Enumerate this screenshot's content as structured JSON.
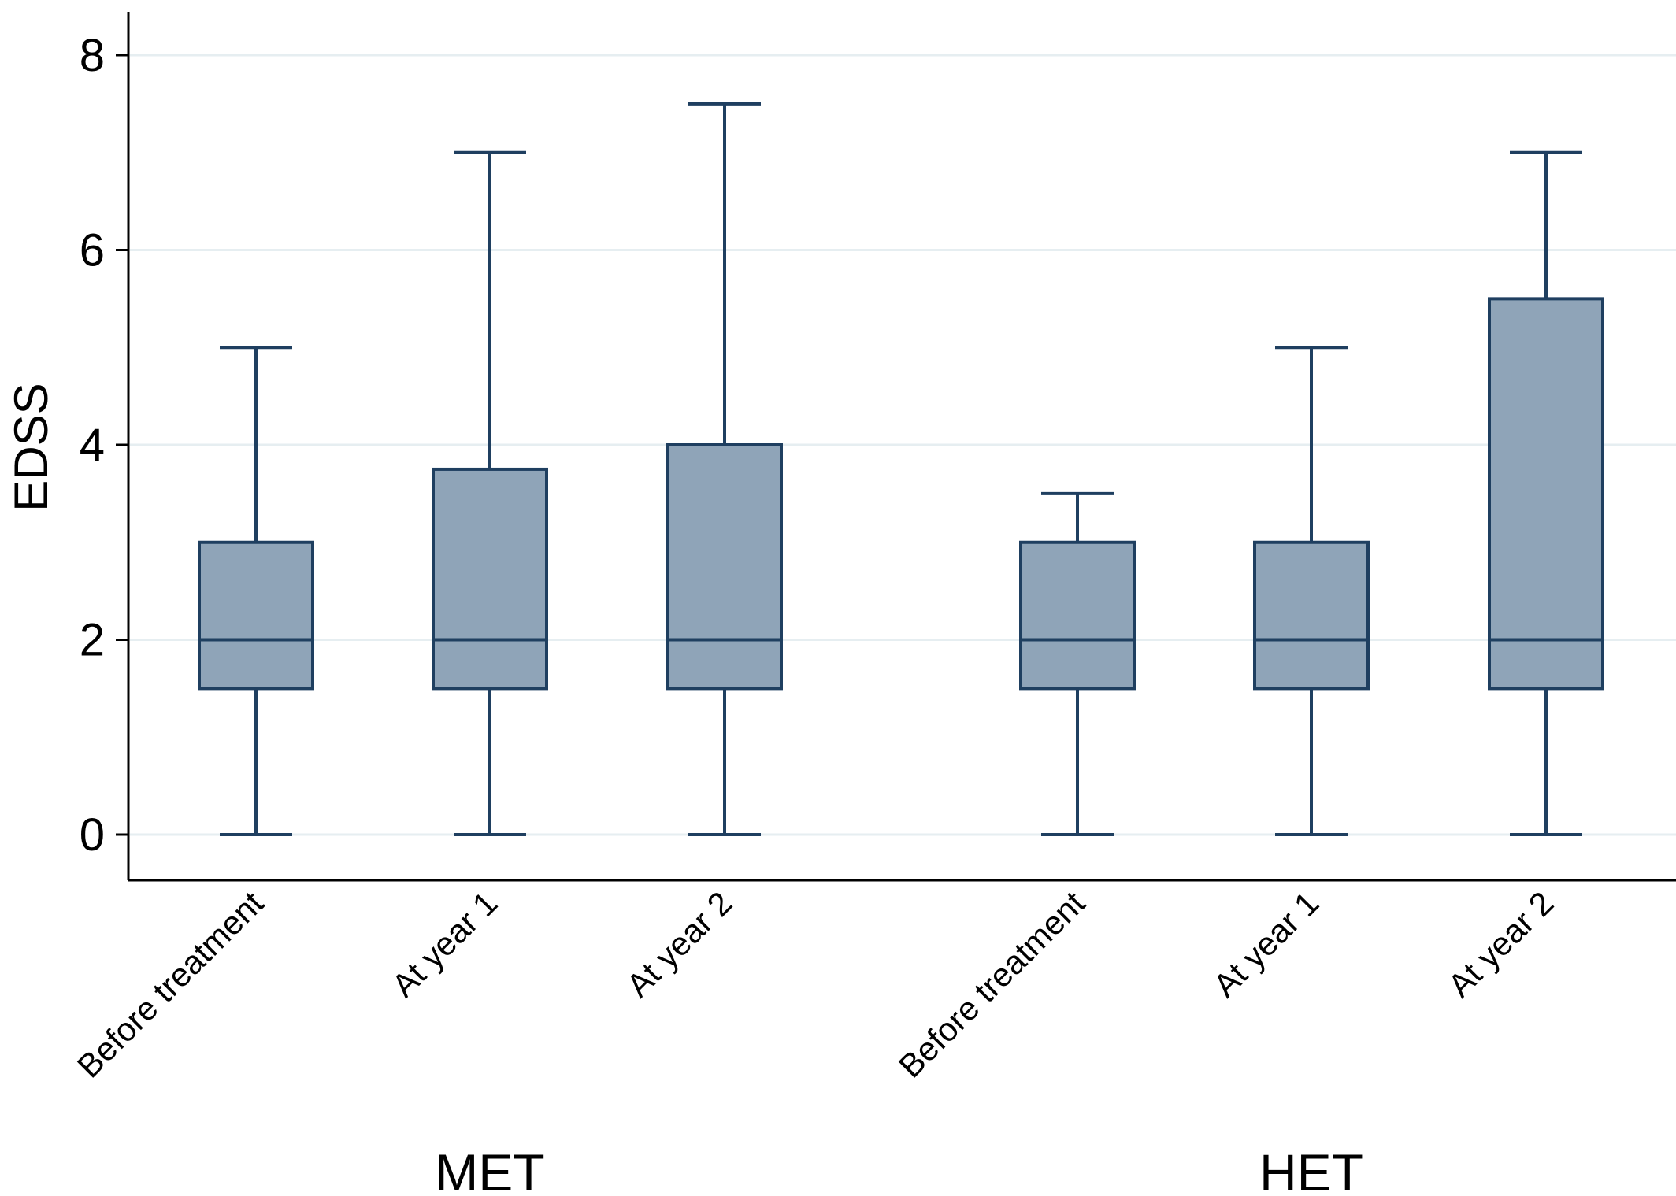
{
  "chart_data": {
    "type": "box",
    "title": "",
    "xlabel": "",
    "ylabel": "EDSS",
    "ylim": [
      -0.45,
      8.45
    ],
    "yticks": [
      0,
      2,
      4,
      6,
      8
    ],
    "grid": true,
    "colors": {
      "box_fill": "#8fa4b8",
      "box_stroke": "#1f3f60",
      "grid": "#e6eef1",
      "axis": "#000000"
    },
    "groups": [
      {
        "name": "MET",
        "boxes": [
          {
            "label": "Before treatment",
            "min": 0,
            "q1": 1.5,
            "median": 2,
            "q3": 3,
            "max": 5
          },
          {
            "label": "At year 1",
            "min": 0,
            "q1": 1.5,
            "median": 2,
            "q3": 3.75,
            "max": 7
          },
          {
            "label": "At year 2",
            "min": 0,
            "q1": 1.5,
            "median": 2,
            "q3": 4,
            "max": 7.5
          }
        ]
      },
      {
        "name": "HET",
        "boxes": [
          {
            "label": "Before treatment",
            "min": 0,
            "q1": 1.5,
            "median": 2,
            "q3": 3,
            "max": 3.5
          },
          {
            "label": "At year 1",
            "min": 0,
            "q1": 1.5,
            "median": 2,
            "q3": 3,
            "max": 5
          },
          {
            "label": "At year 2",
            "min": 0,
            "q1": 1.5,
            "median": 2,
            "q3": 5.5,
            "max": 7
          }
        ]
      }
    ]
  }
}
